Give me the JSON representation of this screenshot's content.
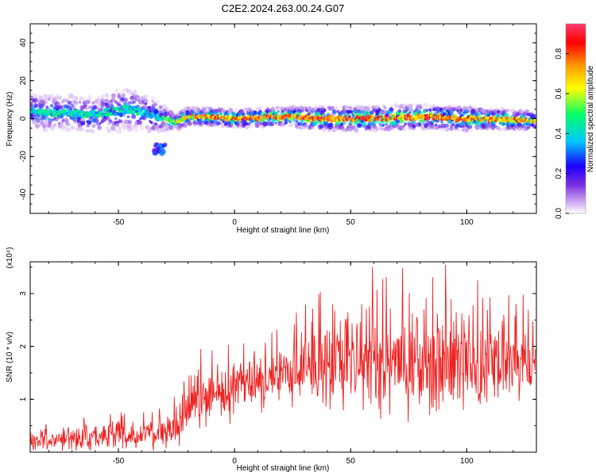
{
  "title": "C2E2.2024.263.00.24.G07",
  "chart_data": [
    {
      "type": "heatmap",
      "title": "C2E2.2024.263.00.24.G07",
      "xlabel": "Height of straight line (km)",
      "ylabel": "Frequency (Hz)",
      "xlim": [
        -88,
        130
      ],
      "ylim": [
        -50,
        50
      ],
      "x_ticks": [
        -50,
        0,
        50,
        100
      ],
      "y_ticks": [
        -40,
        -20,
        0,
        20,
        40
      ],
      "colorbar": {
        "label": "Normalized spectral amplitude",
        "range": [
          0,
          0.95
        ],
        "ticks": [
          0.0,
          0.2,
          0.4,
          0.6,
          0.8
        ],
        "colormap": [
          "#ffffff",
          "#d7b8f2",
          "#7b2fe0",
          "#1b00ff",
          "#00c8ff",
          "#00ff66",
          "#ffff00",
          "#ff9900",
          "#ff0000",
          "#ff3c6e"
        ]
      },
      "ridge": {
        "x": [
          -88,
          -80,
          -70,
          -60,
          -50,
          -45,
          -40,
          -35,
          -30,
          -25,
          -20,
          -10,
          0,
          20,
          40,
          60,
          80,
          100,
          130
        ],
        "freq": [
          4,
          3,
          3,
          2,
          4,
          5,
          3,
          2,
          0,
          -2,
          1,
          1,
          0,
          1,
          0,
          0,
          1,
          0,
          -1
        ],
        "width": [
          6,
          6,
          6,
          6,
          7,
          7,
          6,
          6,
          4,
          3,
          3,
          3,
          3,
          3,
          4,
          4,
          4,
          4,
          3
        ],
        "amplitude": [
          0.45,
          0.45,
          0.45,
          0.42,
          0.45,
          0.45,
          0.42,
          0.38,
          0.5,
          0.6,
          0.7,
          0.75,
          0.8,
          0.85,
          0.85,
          0.85,
          0.82,
          0.8,
          0.7
        ]
      },
      "blob": {
        "x": -32,
        "freq": -16,
        "amplitude": 0.35
      }
    },
    {
      "type": "line",
      "xlabel": "Height of straight line (km)",
      "ylabel": "SNR (10 * v/v)",
      "y_multiplier": "(x10⁴)",
      "xlim": [
        -88,
        130
      ],
      "ylim": [
        0,
        3.6
      ],
      "x_ticks": [
        -50,
        0,
        50,
        100
      ],
      "y_ticks": [
        1,
        2,
        3
      ],
      "color": "#ee2222",
      "envelope": {
        "x": [
          -88,
          -70,
          -50,
          -35,
          -25,
          -19,
          -12,
          -5,
          10,
          20,
          30,
          40,
          50,
          60,
          70,
          80,
          90,
          100,
          110,
          120,
          130
        ],
        "mean": [
          0.2,
          0.25,
          0.3,
          0.35,
          0.4,
          0.9,
          1.0,
          1.1,
          1.3,
          1.45,
          1.55,
          1.65,
          1.7,
          1.75,
          1.75,
          1.75,
          1.75,
          1.7,
          1.65,
          1.7,
          1.75
        ],
        "spread": [
          0.15,
          0.2,
          0.25,
          0.3,
          0.35,
          0.5,
          0.55,
          0.5,
          0.5,
          0.5,
          0.7,
          0.8,
          0.9,
          0.95,
          0.95,
          1.0,
          1.0,
          0.95,
          0.8,
          0.75,
          0.6
        ]
      }
    }
  ]
}
